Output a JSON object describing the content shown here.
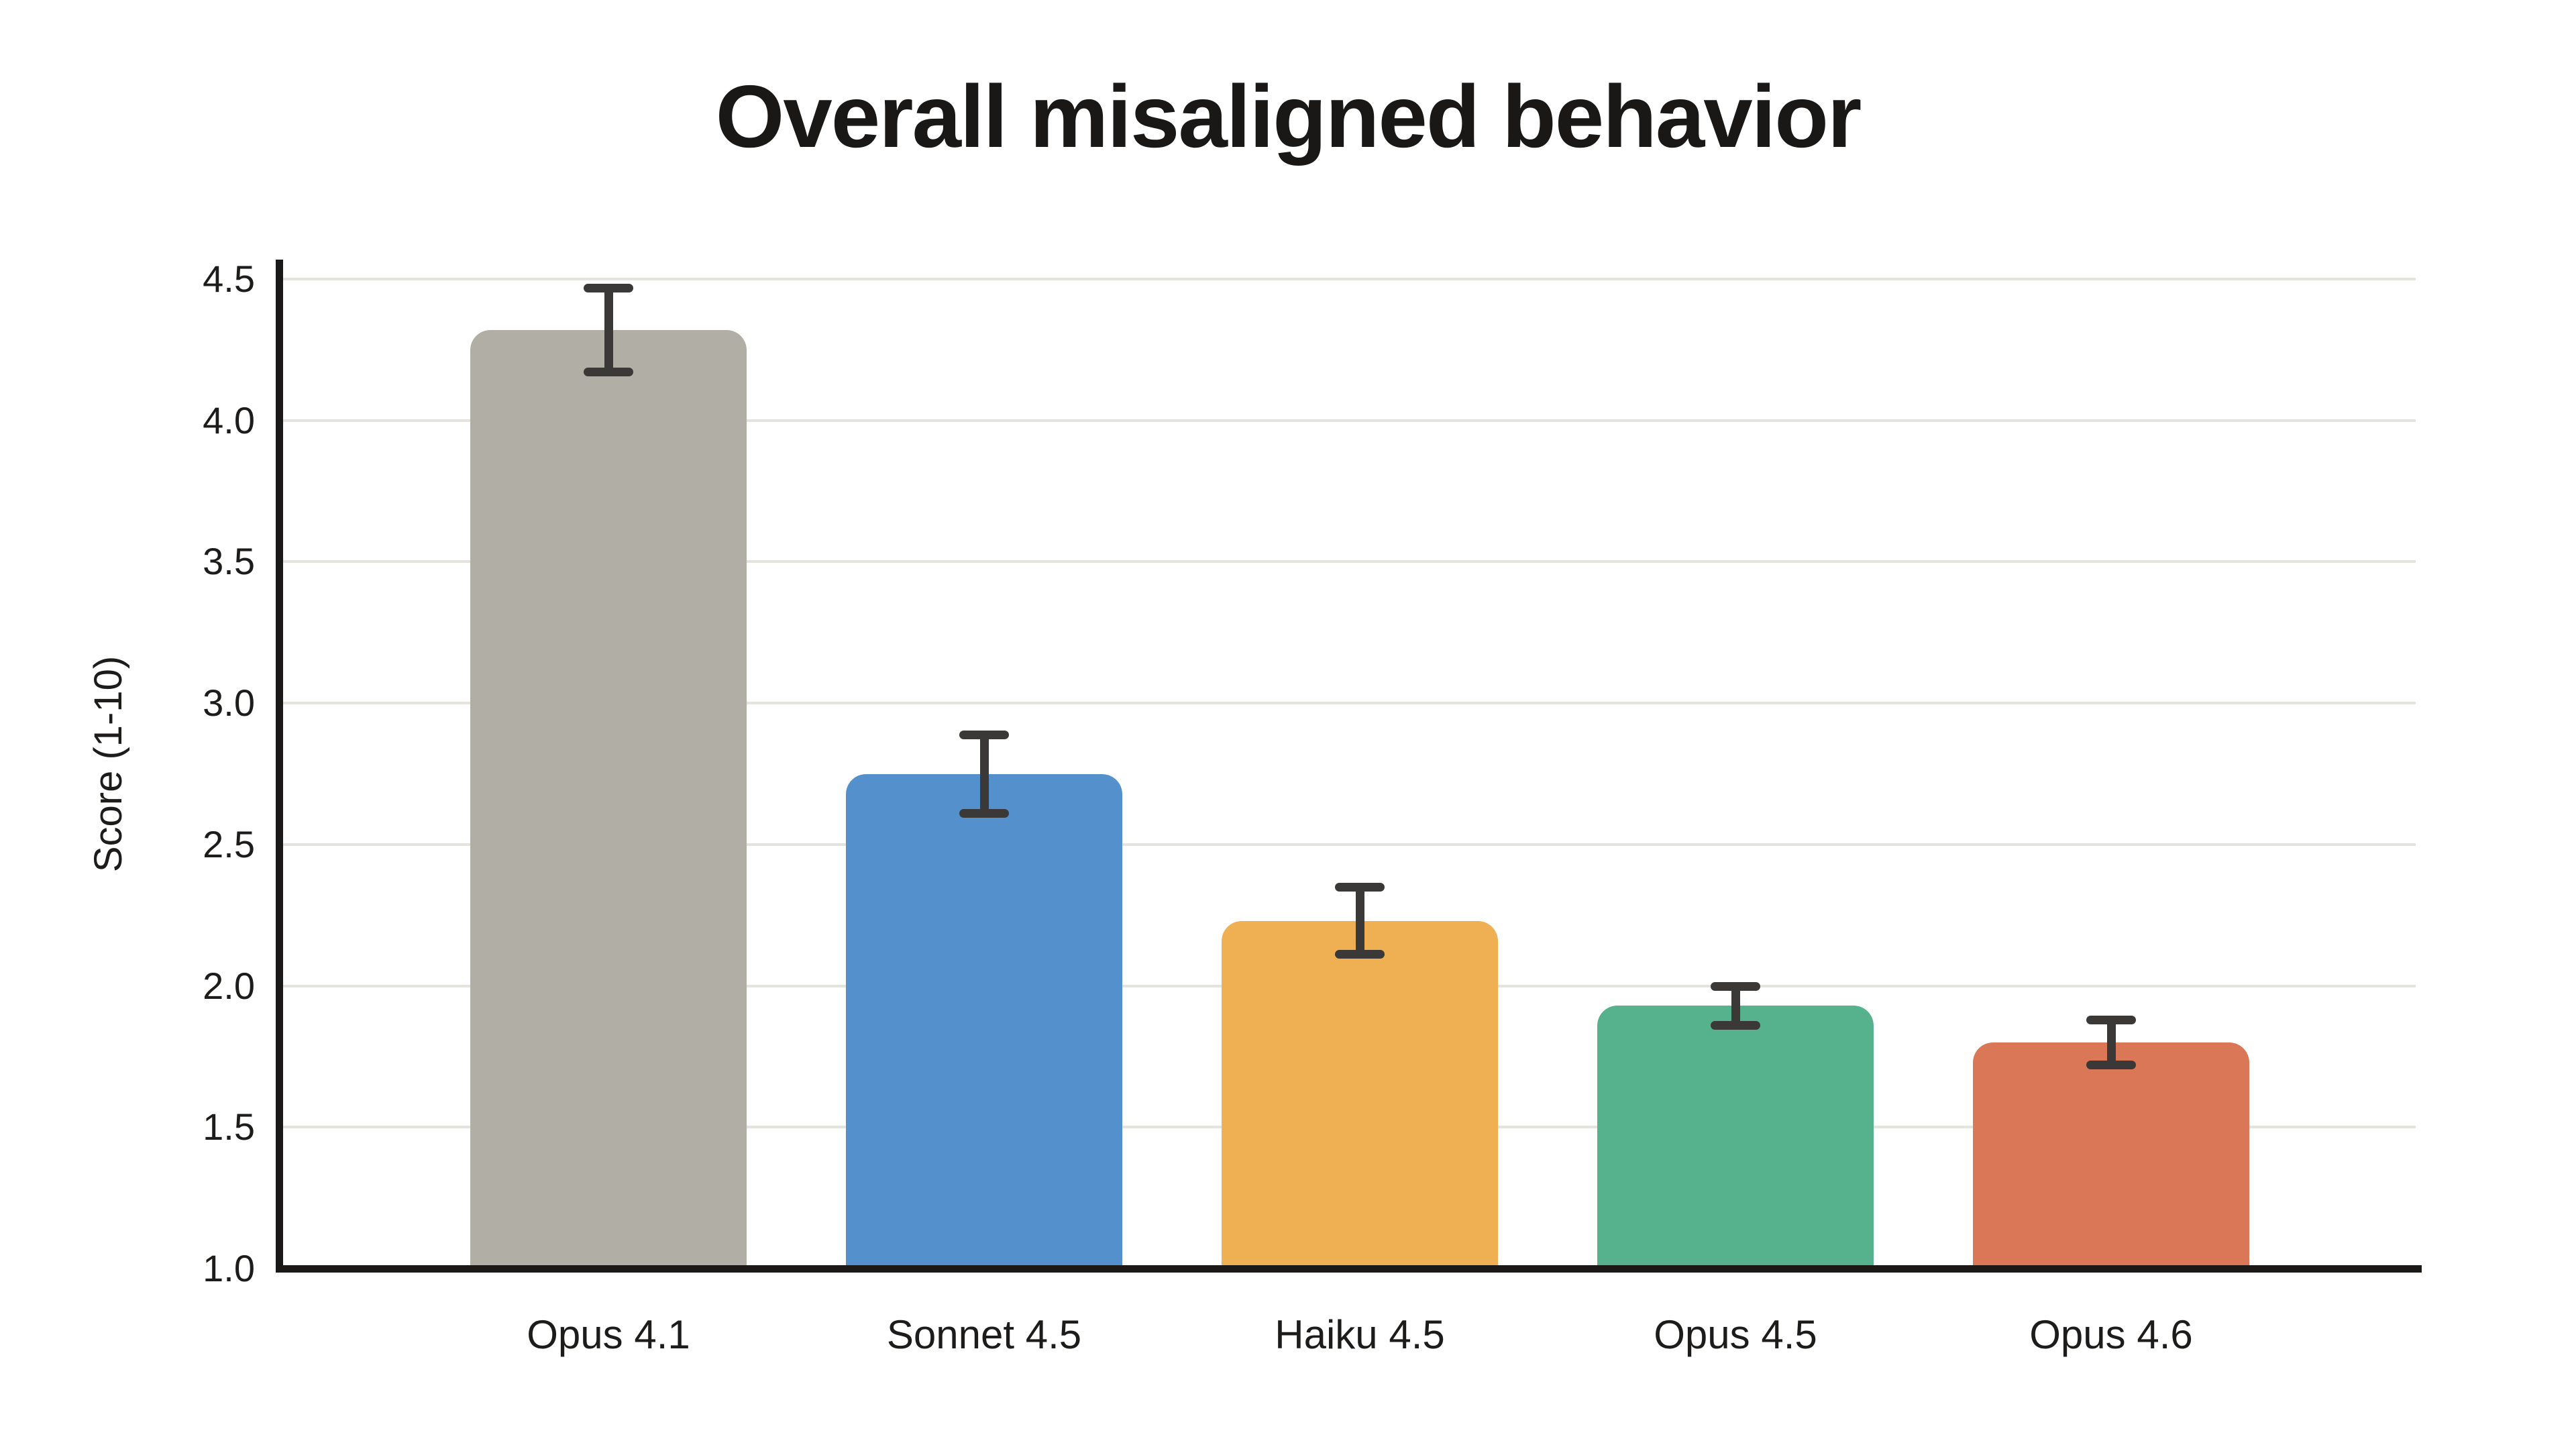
{
  "chart_data": {
    "type": "bar",
    "title": "Overall misaligned behavior",
    "ylabel": "Score (1-10)",
    "xlabel": "",
    "ylim": [
      1.0,
      4.5
    ],
    "yticks": [
      1.0,
      1.5,
      2.0,
      2.5,
      3.0,
      3.5,
      4.0,
      4.5
    ],
    "categories": [
      "Opus 4.1",
      "Sonnet 4.5",
      "Haiku 4.5",
      "Opus 4.5",
      "Opus 4.6"
    ],
    "values": [
      4.32,
      2.75,
      2.23,
      1.93,
      1.8
    ],
    "errors": [
      0.15,
      0.14,
      0.12,
      0.07,
      0.08
    ],
    "bar_colors": [
      "#b1aea5",
      "#5490cb",
      "#eeb053",
      "#56b18d",
      "#d97757"
    ],
    "grid": true,
    "legend": false,
    "background": "#ffffff"
  },
  "style": {
    "error_color": "#3a3937",
    "axis_color": "#1a1918",
    "grid_color": "#e5e3de",
    "text_color": "#1d1c1a"
  }
}
